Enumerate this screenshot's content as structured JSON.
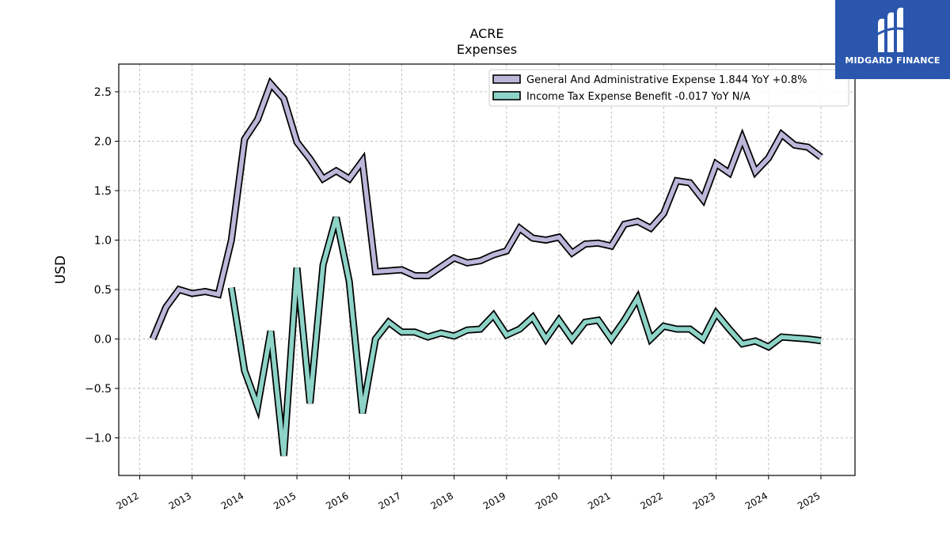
{
  "chart_data": {
    "type": "line",
    "title": "ACRE",
    "subtitle": "Expenses",
    "ylabel": "USD",
    "xlabel": "",
    "ylim": [
      -1.38,
      2.78
    ],
    "xlim": [
      2011.6,
      2025.65
    ],
    "yticks": [
      -1.0,
      -0.5,
      0.0,
      0.5,
      1.0,
      1.5,
      2.0,
      2.5
    ],
    "ytick_labels": [
      "−1.0",
      "−0.5",
      "0.0",
      "0.5",
      "1.0",
      "1.5",
      "2.0",
      "2.5"
    ],
    "xticks": [
      2012,
      2013,
      2014,
      2015,
      2016,
      2017,
      2018,
      2019,
      2020,
      2021,
      2022,
      2023,
      2024,
      2025
    ],
    "xtick_labels": [
      "2012",
      "2013",
      "2014",
      "2015",
      "2016",
      "2017",
      "2018",
      "2019",
      "2020",
      "2021",
      "2022",
      "2023",
      "2024",
      "2025"
    ],
    "grid": true,
    "legend_position": "top-right",
    "series": [
      {
        "name": "General And Administrative Expense  1.844 YoY +0.8%",
        "color": "#bcb6d9",
        "x": [
          2012.25,
          2012.5,
          2012.75,
          2013.0,
          2013.25,
          2013.5,
          2013.75,
          2014.0,
          2014.25,
          2014.5,
          2014.75,
          2015.0,
          2015.25,
          2015.5,
          2015.75,
          2016.0,
          2016.25,
          2016.5,
          2016.75,
          2017.0,
          2017.25,
          2017.5,
          2017.75,
          2018.0,
          2018.25,
          2018.5,
          2018.75,
          2019.0,
          2019.25,
          2019.5,
          2019.75,
          2020.0,
          2020.25,
          2020.5,
          2020.75,
          2021.0,
          2021.25,
          2021.5,
          2021.75,
          2022.0,
          2022.25,
          2022.5,
          2022.75,
          2023.0,
          2023.25,
          2023.5,
          2023.75,
          2024.0,
          2024.25,
          2024.5,
          2024.75,
          2025.0
        ],
        "values": [
          0.0,
          0.32,
          0.5,
          0.46,
          0.48,
          0.45,
          1.0,
          2.02,
          2.22,
          2.58,
          2.43,
          1.99,
          1.82,
          1.62,
          1.7,
          1.62,
          1.8,
          0.68,
          0.69,
          0.7,
          0.64,
          0.64,
          0.73,
          0.82,
          0.77,
          0.79,
          0.85,
          0.89,
          1.12,
          1.02,
          1.0,
          1.03,
          0.87,
          0.96,
          0.97,
          0.94,
          1.16,
          1.19,
          1.12,
          1.27,
          1.6,
          1.58,
          1.41,
          1.77,
          1.68,
          2.03,
          1.69,
          1.83,
          2.07,
          1.96,
          1.94,
          1.84
        ]
      },
      {
        "name": "Income Tax Expense Benefit  -0.017 YoY N/A",
        "color": "#8dd3c7",
        "x": [
          2013.75,
          2014.0,
          2014.25,
          2014.5,
          2014.75,
          2015.0,
          2015.25,
          2015.5,
          2015.75,
          2016.0,
          2016.25,
          2016.5,
          2016.75,
          2017.0,
          2017.25,
          2017.5,
          2017.75,
          2018.0,
          2018.25,
          2018.5,
          2018.75,
          2019.0,
          2019.25,
          2019.5,
          2019.75,
          2020.0,
          2020.25,
          2020.5,
          2020.75,
          2021.0,
          2021.25,
          2021.5,
          2021.75,
          2022.0,
          2022.25,
          2022.5,
          2022.75,
          2023.0,
          2023.25,
          2023.5,
          2023.75,
          2024.0,
          2024.25,
          2024.5,
          2024.75,
          2025.0
        ],
        "values": [
          0.52,
          -0.32,
          -0.68,
          0.08,
          -1.18,
          0.72,
          -0.65,
          0.75,
          1.23,
          0.58,
          -0.75,
          0.0,
          0.17,
          0.07,
          0.07,
          0.02,
          0.06,
          0.03,
          0.09,
          0.1,
          0.24,
          0.04,
          0.1,
          0.22,
          0.0,
          0.19,
          0.0,
          0.17,
          0.19,
          0.0,
          0.19,
          0.41,
          0.0,
          0.13,
          0.1,
          0.1,
          0.0,
          0.26,
          0.1,
          -0.05,
          -0.02,
          -0.08,
          0.02,
          0.01,
          0.0,
          -0.017
        ]
      }
    ]
  },
  "logo": {
    "text": "MIDGARD FINANCE",
    "background": "#2a56ad"
  }
}
